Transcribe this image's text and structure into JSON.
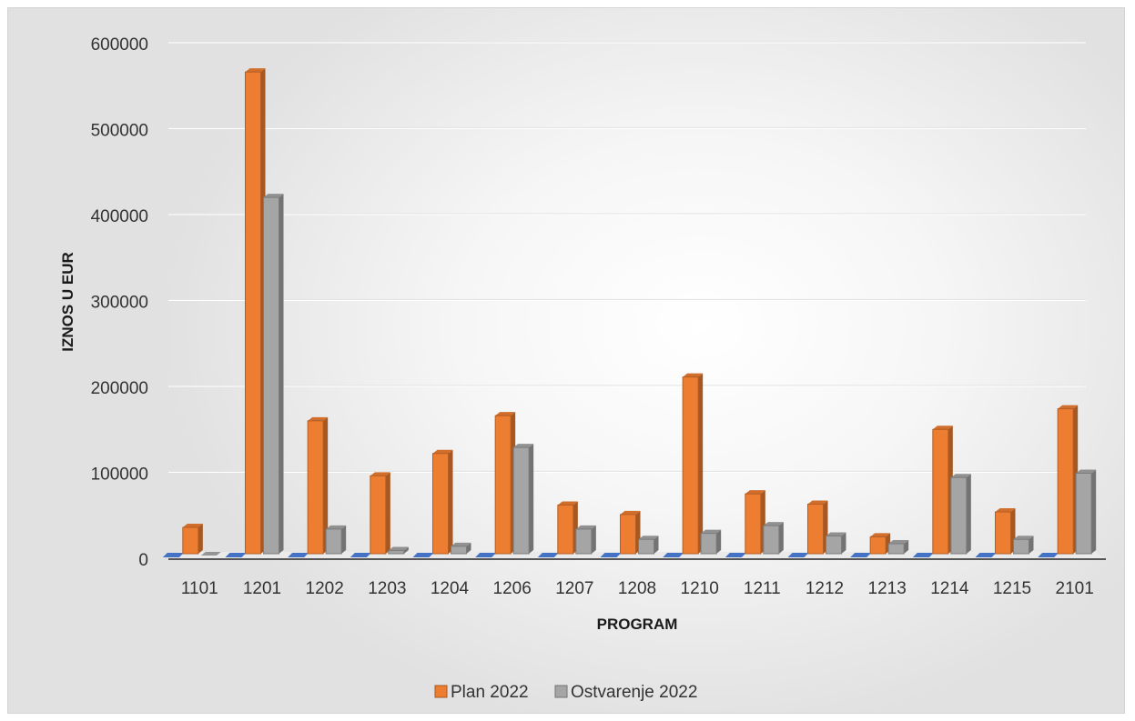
{
  "chart_data": {
    "type": "bar",
    "title": "",
    "xlabel": "PROGRAM",
    "ylabel": "IZNOS U EUR",
    "ylim": [
      0,
      600000
    ],
    "yticks": [
      0,
      100000,
      200000,
      300000,
      400000,
      500000,
      600000
    ],
    "grid": true,
    "legend_position": "bottom",
    "categories": [
      "1101",
      "1201",
      "1202",
      "1203",
      "1204",
      "1206",
      "1207",
      "1208",
      "1210",
      "1211",
      "1212",
      "1213",
      "1214",
      "1215",
      "2101"
    ],
    "series": [
      {
        "name": "Plan 2022",
        "color": "#ED7D31",
        "values": [
          37000,
          567000,
          161000,
          97000,
          123000,
          167000,
          63000,
          52000,
          212000,
          76000,
          64000,
          26000,
          151000,
          55000,
          175000
        ]
      },
      {
        "name": "Ostvarenje 2022",
        "color": "#A5A5A5",
        "values": [
          500,
          421000,
          35000,
          10000,
          15000,
          130000,
          35000,
          23000,
          30000,
          39000,
          27000,
          18000,
          95000,
          23000,
          100000
        ]
      }
    ]
  }
}
